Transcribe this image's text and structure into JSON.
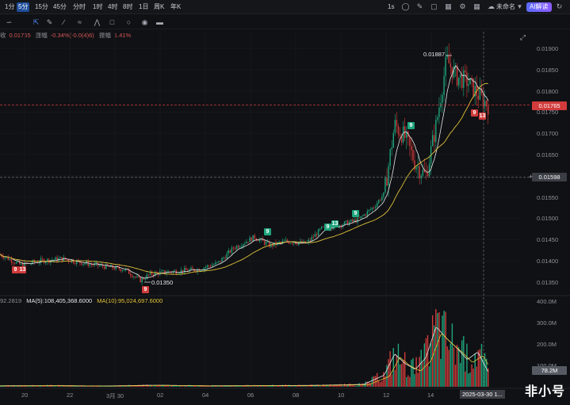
{
  "toolbar": {
    "timeframes": [
      "1分",
      "5分",
      "15分",
      "45分",
      "分时",
      "1时",
      "4时",
      "8时",
      "1日",
      "周K",
      "年K"
    ],
    "active_timeframe": "5分",
    "interval_label": "1s",
    "layout_name": "未命名",
    "ai_label": "AI解读"
  },
  "legend": {
    "prefix": "收",
    "price": "0.01765",
    "change_label": "涨幅",
    "change": "-0.34%(-0.0(4)6)",
    "amplitude_label": "振幅",
    "amplitude": "1.41%"
  },
  "price_axis": {
    "ticks": [
      "0.01900",
      "0.01850",
      "0.01800",
      "0.01750",
      "0.01700",
      "0.01650",
      "0.01600",
      "0.01550",
      "0.01500",
      "0.01450",
      "0.01400",
      "0.01350"
    ],
    "current_price_tag": "0.01765",
    "crosshair_tag": "0.01598"
  },
  "annotations": {
    "high": "0.01887",
    "low": "0.01350"
  },
  "markers": [
    {
      "label": "9",
      "color": "r"
    },
    {
      "label": "13",
      "color": "r"
    },
    {
      "label": "9",
      "color": "r"
    },
    {
      "label": "9",
      "color": "g"
    },
    {
      "label": "9",
      "color": "g"
    },
    {
      "label": "13",
      "color": "g"
    },
    {
      "label": "9",
      "color": "g"
    },
    {
      "label": "9",
      "color": "g"
    },
    {
      "label": "9",
      "color": "r"
    },
    {
      "label": "13",
      "color": "r"
    }
  ],
  "volume": {
    "prefix_value": "92.2819",
    "ma5_label": "MA(5):108,405,368.6000",
    "ma10_label": "MA(10):95,024,697.6000",
    "axis_ticks": [
      "400.0M",
      "300.0M",
      "200.0M",
      "100.0M"
    ],
    "current_tag": "78.2M"
  },
  "x_axis": {
    "ticks": [
      "20",
      "22",
      "3月 30",
      "02",
      "04",
      "06",
      "08",
      "10",
      "12",
      "14"
    ],
    "crosshair_tag": "2025-03-30 1..."
  },
  "watermark": "非小号",
  "colors": {
    "up": "#1fa57c",
    "down": "#d13b3b",
    "ma5": "#e8e8e8",
    "ma10": "#e0c23a"
  },
  "chart_data": {
    "type": "candlestick",
    "x_ticks": [
      "20",
      "22",
      "3月 30",
      "02",
      "04",
      "06",
      "08",
      "10",
      "12",
      "14"
    ],
    "ylim": [
      0.0133,
      0.0192
    ],
    "close_path": [
      [
        0,
        0.0142
      ],
      [
        0.04,
        0.01395
      ],
      [
        0.08,
        0.01405
      ],
      [
        0.12,
        0.0141
      ],
      [
        0.16,
        0.014
      ],
      [
        0.2,
        0.01392
      ],
      [
        0.24,
        0.01385
      ],
      [
        0.27,
        0.0136
      ],
      [
        0.29,
        0.01375
      ],
      [
        0.33,
        0.0138
      ],
      [
        0.38,
        0.01385
      ],
      [
        0.42,
        0.014
      ],
      [
        0.45,
        0.01435
      ],
      [
        0.49,
        0.0146
      ],
      [
        0.52,
        0.0144
      ],
      [
        0.55,
        0.0145
      ],
      [
        0.59,
        0.01445
      ],
      [
        0.62,
        0.0148
      ],
      [
        0.66,
        0.0149
      ],
      [
        0.69,
        0.015
      ],
      [
        0.72,
        0.0153
      ],
      [
        0.74,
        0.0156
      ],
      [
        0.76,
        0.0172
      ],
      [
        0.78,
        0.0169
      ],
      [
        0.8,
        0.0163
      ],
      [
        0.82,
        0.016
      ],
      [
        0.84,
        0.0172
      ],
      [
        0.86,
        0.0187
      ],
      [
        0.88,
        0.0183
      ],
      [
        0.9,
        0.0182
      ],
      [
        0.92,
        0.0179
      ],
      [
        0.94,
        0.01765
      ]
    ],
    "volume_path": [
      [
        0,
        5
      ],
      [
        0.1,
        6
      ],
      [
        0.2,
        4
      ],
      [
        0.3,
        8
      ],
      [
        0.4,
        5
      ],
      [
        0.5,
        6
      ],
      [
        0.6,
        7
      ],
      [
        0.7,
        12
      ],
      [
        0.74,
        60
      ],
      [
        0.76,
        170
      ],
      [
        0.78,
        120
      ],
      [
        0.8,
        90
      ],
      [
        0.82,
        150
      ],
      [
        0.84,
        310
      ],
      [
        0.86,
        250
      ],
      [
        0.88,
        200
      ],
      [
        0.9,
        140
      ],
      [
        0.92,
        180
      ],
      [
        0.94,
        78
      ]
    ]
  }
}
